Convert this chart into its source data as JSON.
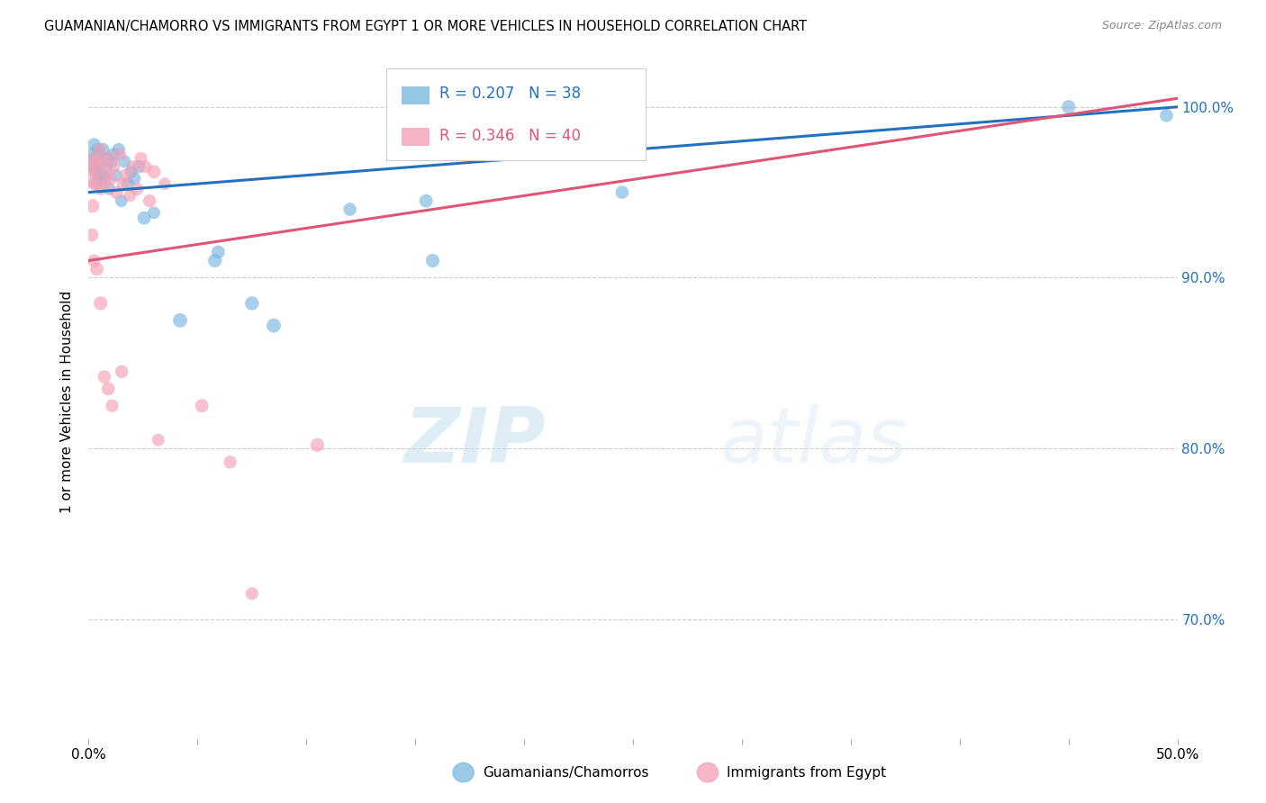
{
  "title": "GUAMANIAN/CHAMORRO VS IMMIGRANTS FROM EGYPT 1 OR MORE VEHICLES IN HOUSEHOLD CORRELATION CHART",
  "source": "Source: ZipAtlas.com",
  "ylabel": "1 or more Vehicles in Household",
  "xmin": 0.0,
  "xmax": 50.0,
  "ymin": 63.0,
  "ymax": 102.5,
  "yticks": [
    70.0,
    80.0,
    90.0,
    100.0
  ],
  "ytick_labels": [
    "70.0%",
    "80.0%",
    "90.0%",
    "100.0%"
  ],
  "blue_R": 0.207,
  "blue_N": 38,
  "pink_R": 0.346,
  "pink_N": 40,
  "blue_label": "Guamanians/Chamorros",
  "pink_label": "Immigrants from Egypt",
  "blue_color": "#7ab8e0",
  "pink_color": "#f4a0b5",
  "blue_line_color": "#2271c2",
  "pink_line_color": "#e05575",
  "background_color": "#ffffff",
  "watermark_zip": "ZIP",
  "watermark_atlas": "atlas",
  "blue_x": [
    0.15,
    0.2,
    0.25,
    0.28,
    0.32,
    0.38,
    0.42,
    0.48,
    0.52,
    0.58,
    0.65,
    0.72,
    0.8,
    0.88,
    0.95,
    1.05,
    1.15,
    1.25,
    1.38,
    1.5,
    1.65,
    1.8,
    1.95,
    2.1,
    2.3,
    2.55,
    3.0,
    4.2,
    5.8,
    5.95,
    7.5,
    8.5,
    15.5,
    15.8,
    24.5,
    45.0,
    49.5,
    12.0
  ],
  "blue_y": [
    97.2,
    96.5,
    97.8,
    97.0,
    96.2,
    95.5,
    97.5,
    96.8,
    97.2,
    96.0,
    97.5,
    95.8,
    96.5,
    97.0,
    95.2,
    96.8,
    97.2,
    96.0,
    97.5,
    94.5,
    96.8,
    95.5,
    96.2,
    95.8,
    96.5,
    93.5,
    93.8,
    87.5,
    91.0,
    91.5,
    88.5,
    87.2,
    94.5,
    91.0,
    95.0,
    100.0,
    99.5,
    94.0
  ],
  "pink_x": [
    0.08,
    0.12,
    0.18,
    0.22,
    0.28,
    0.35,
    0.42,
    0.5,
    0.58,
    0.65,
    0.72,
    0.82,
    0.92,
    1.02,
    1.15,
    1.28,
    1.42,
    1.58,
    1.72,
    1.9,
    2.05,
    2.22,
    2.4,
    2.6,
    2.8,
    3.0,
    3.5,
    0.15,
    0.25,
    0.38,
    0.55,
    0.72,
    0.9,
    1.08,
    1.52,
    3.2,
    5.2,
    6.5,
    7.5,
    10.5
  ],
  "pink_y": [
    95.8,
    96.5,
    94.2,
    97.0,
    95.5,
    96.8,
    96.2,
    97.5,
    95.2,
    96.8,
    95.5,
    96.2,
    97.0,
    95.8,
    96.5,
    95.0,
    97.2,
    95.5,
    96.0,
    94.8,
    96.5,
    95.2,
    97.0,
    96.5,
    94.5,
    96.2,
    95.5,
    92.5,
    91.0,
    90.5,
    88.5,
    84.2,
    83.5,
    82.5,
    84.5,
    80.5,
    82.5,
    79.2,
    71.5,
    80.2
  ],
  "blue_trendline": [
    0.0,
    50.0,
    95.0,
    100.0
  ],
  "pink_trendline": [
    0.0,
    50.0,
    91.0,
    100.5
  ],
  "blue_sizes": [
    120,
    100,
    110,
    100,
    115,
    105,
    110,
    100,
    105,
    110,
    115,
    100,
    110,
    105,
    100,
    110,
    115,
    105,
    110,
    100,
    105,
    110,
    100,
    105,
    110,
    115,
    100,
    130,
    120,
    115,
    125,
    130,
    115,
    120,
    110,
    120,
    115,
    110
  ],
  "pink_sizes": [
    220,
    110,
    120,
    100,
    115,
    105,
    110,
    100,
    105,
    110,
    115,
    100,
    110,
    105,
    100,
    110,
    115,
    105,
    110,
    100,
    105,
    110,
    100,
    105,
    110,
    115,
    100,
    110,
    105,
    115,
    120,
    110,
    115,
    105,
    110,
    100,
    115,
    110,
    105,
    120
  ]
}
